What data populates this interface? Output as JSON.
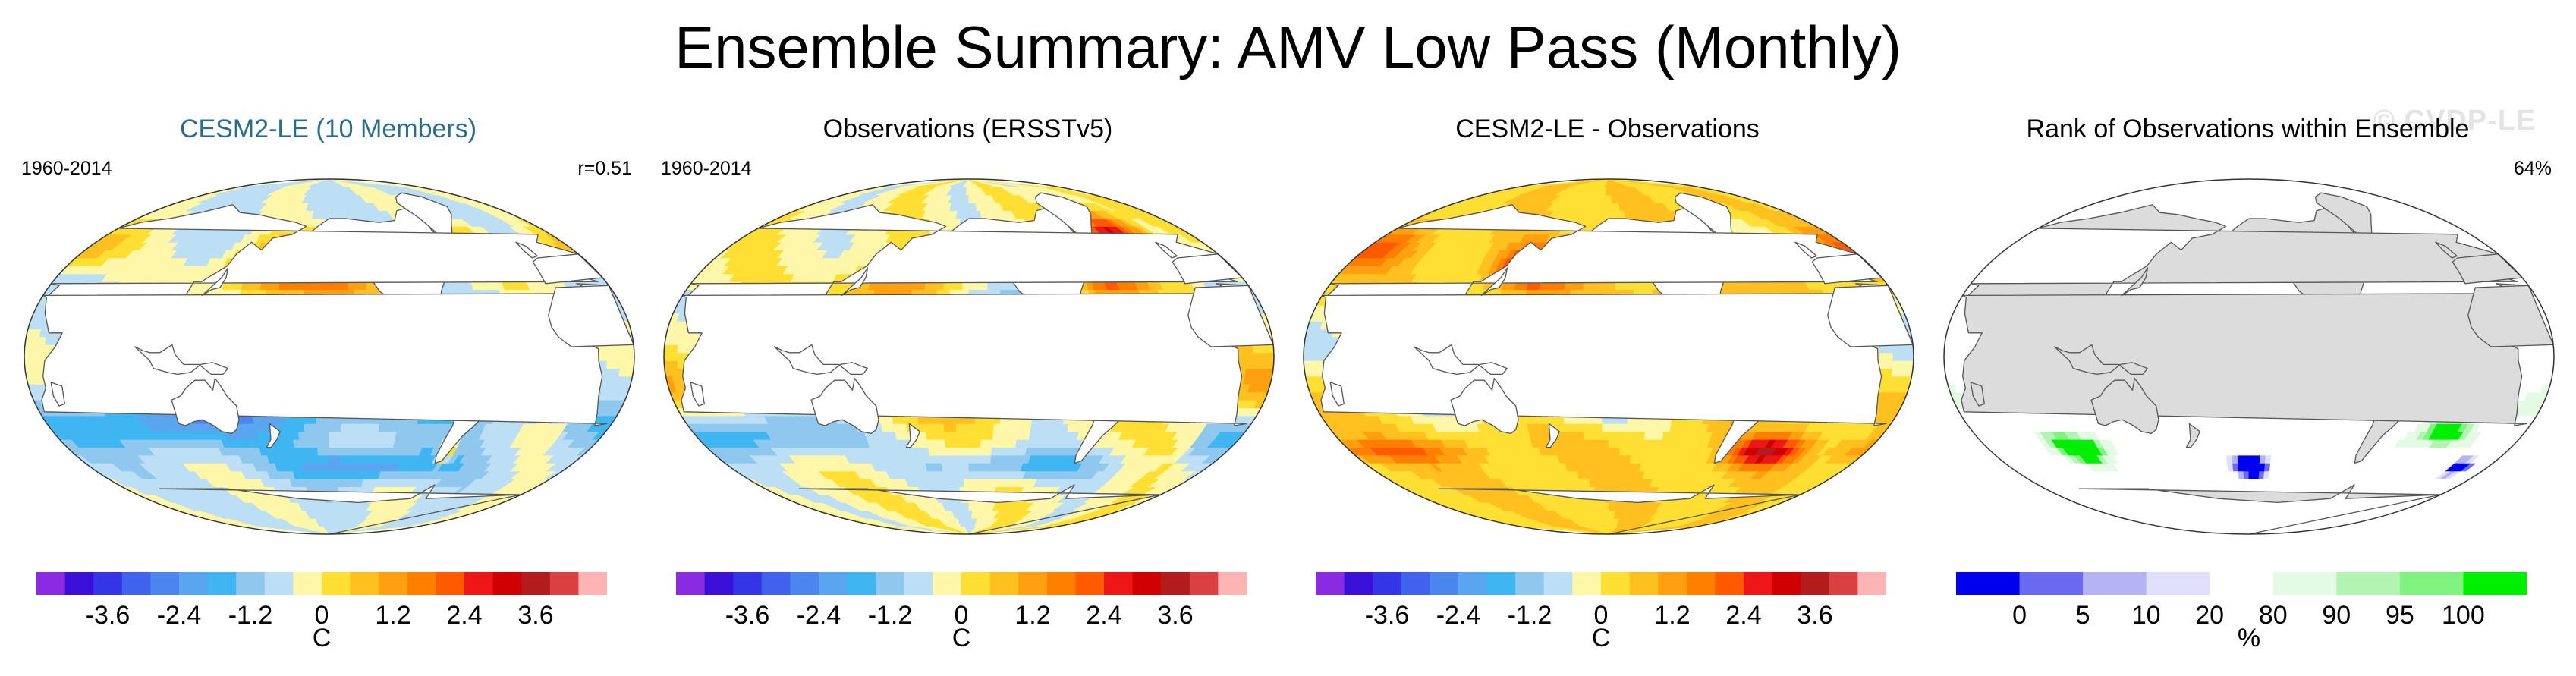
{
  "title": "Ensemble Summary: AMV Low Pass (Monthly)",
  "watermark": "© CVDP-LE",
  "panels": [
    {
      "title": "CESM2-LE (10 Members)",
      "title_color": "#2b6c8c",
      "left_label": "1960-2014",
      "right_label": "r=0.51",
      "scheme": "anom",
      "variant": 0
    },
    {
      "title": "Observations (ERSSTv5)",
      "title_color": "#000000",
      "left_label": "1960-2014",
      "right_label": "",
      "scheme": "anom",
      "variant": 1
    },
    {
      "title": "CESM2-LE - Observations",
      "title_color": "#000000",
      "left_label": "",
      "right_label": "",
      "scheme": "anom",
      "variant": 2
    },
    {
      "title": "Rank of Observations within Ensemble",
      "title_color": "#000000",
      "left_label": "",
      "right_label": "64%",
      "scheme": "rank",
      "variant": 3
    }
  ],
  "anomaly_colorbar": {
    "colors": [
      "#8a2be2",
      "#3a10d8",
      "#3535e8",
      "#3f63ec",
      "#4a86ee",
      "#5aa5f0",
      "#3fb6f2",
      "#8fc8ee",
      "#bcdff5",
      "#fff7a8",
      "#ffdf33",
      "#ffc020",
      "#ffa010",
      "#ff7f00",
      "#ff5a00",
      "#ee1616",
      "#d00000",
      "#b31c1c",
      "#d9403f",
      "#ffb4b4"
    ],
    "ticks": [
      "-3.6",
      "-2.4",
      "-1.2",
      "0",
      "1.2",
      "2.4",
      "3.6"
    ],
    "tick_values": [
      -3.6,
      -2.4,
      -1.2,
      0,
      1.2,
      2.4,
      3.6
    ],
    "min": -4.8,
    "max": 4.8,
    "unit": "C"
  },
  "rank_colorbar": {
    "colors": [
      "#0000ee",
      "#6a6af0",
      "#b4b4f4",
      "#e0e0fb",
      "#ffffff",
      "#e2fbe2",
      "#b2f5b2",
      "#7ff27f",
      "#00ee00"
    ],
    "ticks": [
      "0",
      "5",
      "10",
      "20",
      "80",
      "90",
      "95",
      "100"
    ],
    "unit": "%"
  }
}
